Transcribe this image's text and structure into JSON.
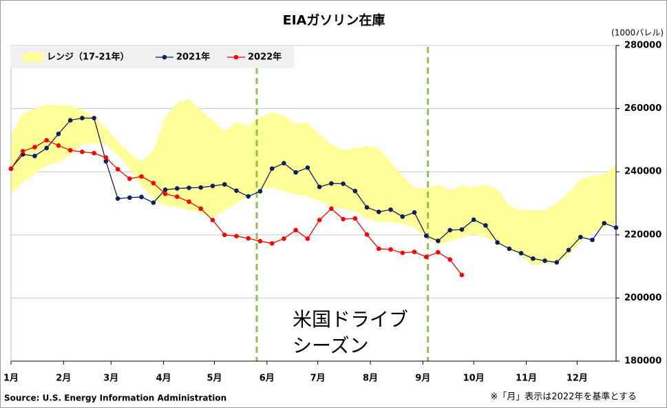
{
  "chart_data": {
    "type": "line",
    "title": "EIAガソリン在庫",
    "y_unit_label": "(1000バレル)",
    "source": "Source: U.S. Energy Information Administration",
    "note": "※「月」表示は2022年を基準とする",
    "annotation": [
      "米国ドライブ",
      "シーズン"
    ],
    "annotation_color": "#00b050",
    "vlines": [
      146,
      247
    ],
    "vline_color": "#92c050",
    "x": [
      1,
      8,
      15,
      22,
      29,
      36,
      43,
      50,
      57,
      64,
      71,
      78,
      85,
      92,
      99,
      106,
      113,
      120,
      127,
      134,
      141,
      148,
      155,
      162,
      169,
      176,
      183,
      190,
      197,
      204,
      211,
      218,
      225,
      232,
      239,
      246,
      253,
      260,
      267,
      274,
      281,
      288,
      295,
      302,
      309,
      316,
      323,
      330,
      337,
      344,
      351,
      358
    ],
    "xlim": [
      1,
      358
    ],
    "xticks": [
      {
        "value": 1,
        "label": "1月"
      },
      {
        "value": 32,
        "label": "2月"
      },
      {
        "value": 60,
        "label": "3月"
      },
      {
        "value": 91,
        "label": "4月"
      },
      {
        "value": 121,
        "label": "5月"
      },
      {
        "value": 152,
        "label": "6月"
      },
      {
        "value": 182,
        "label": "7月"
      },
      {
        "value": 213,
        "label": "8月"
      },
      {
        "value": 244,
        "label": "9月"
      },
      {
        "value": 274,
        "label": "10月"
      },
      {
        "value": 305,
        "label": "11月"
      },
      {
        "value": 335,
        "label": "12月"
      }
    ],
    "ylim": [
      180000,
      280000
    ],
    "yticks": [
      180000,
      200000,
      220000,
      240000,
      260000,
      280000
    ],
    "grid": true,
    "legend": "top-left",
    "band": {
      "name": "レンジ（17-21年）",
      "color": "#ffff99",
      "upper": [
        251600,
        258400,
        260000,
        261200,
        261000,
        261000,
        259500,
        257300,
        254000,
        249600,
        246000,
        243100,
        246800,
        257300,
        261700,
        263200,
        259500,
        256200,
        252900,
        255500,
        254700,
        257300,
        258800,
        257700,
        255100,
        255500,
        251800,
        248600,
        246800,
        247500,
        248100,
        247500,
        243100,
        238700,
        235000,
        234800,
        235900,
        234100,
        235500,
        235000,
        235900,
        234400,
        229300,
        227800,
        227800,
        227800,
        230000,
        233300,
        237600,
        238700,
        239200,
        242000
      ],
      "lower": [
        232800,
        236600,
        239400,
        242000,
        243100,
        245300,
        248600,
        249000,
        248600,
        245300,
        240900,
        235500,
        231500,
        229300,
        228900,
        227800,
        227100,
        225600,
        227800,
        230000,
        232200,
        234400,
        235000,
        233700,
        232800,
        232200,
        230700,
        228900,
        228300,
        227400,
        225000,
        224100,
        224100,
        223500,
        222400,
        219100,
        216900,
        218000,
        219100,
        220200,
        219100,
        217600,
        215400,
        213600,
        210300,
        211000,
        210800,
        213600,
        217600,
        220600,
        222400,
        223500
      ]
    },
    "series": [
      {
        "name": "2021年",
        "color": "#0d1f5c",
        "values": [
          241000,
          245500,
          245000,
          247500,
          252000,
          256300,
          257000,
          257000,
          243300,
          231500,
          231800,
          232000,
          230200,
          234300,
          234700,
          234900,
          235000,
          235500,
          236000,
          234000,
          232200,
          233800,
          241000,
          242700,
          239800,
          241300,
          235200,
          236300,
          236200,
          233900,
          228700,
          227300,
          228000,
          225800,
          227100,
          219700,
          218100,
          221500,
          221700,
          224800,
          223000,
          217600,
          215600,
          214200,
          212500,
          211800,
          211300,
          215200,
          219300,
          218400,
          223700,
          222300
        ]
      },
      {
        "name": "2022年",
        "color": "#ff0000",
        "values": [
          240900,
          246500,
          247800,
          250000,
          248300,
          246800,
          246300,
          245900,
          244500,
          240800,
          237800,
          238500,
          236400,
          233000,
          232100,
          230500,
          228300,
          224700,
          220000,
          219600,
          218900,
          218000,
          217300,
          218800,
          221500,
          218800,
          224700,
          228300,
          225000,
          225200,
          220100,
          215600,
          215400,
          214300,
          214600,
          213000,
          214500,
          212200,
          207300,
          null,
          null,
          null,
          null,
          null,
          null,
          null,
          null,
          null,
          null,
          null,
          null,
          null
        ]
      }
    ]
  }
}
